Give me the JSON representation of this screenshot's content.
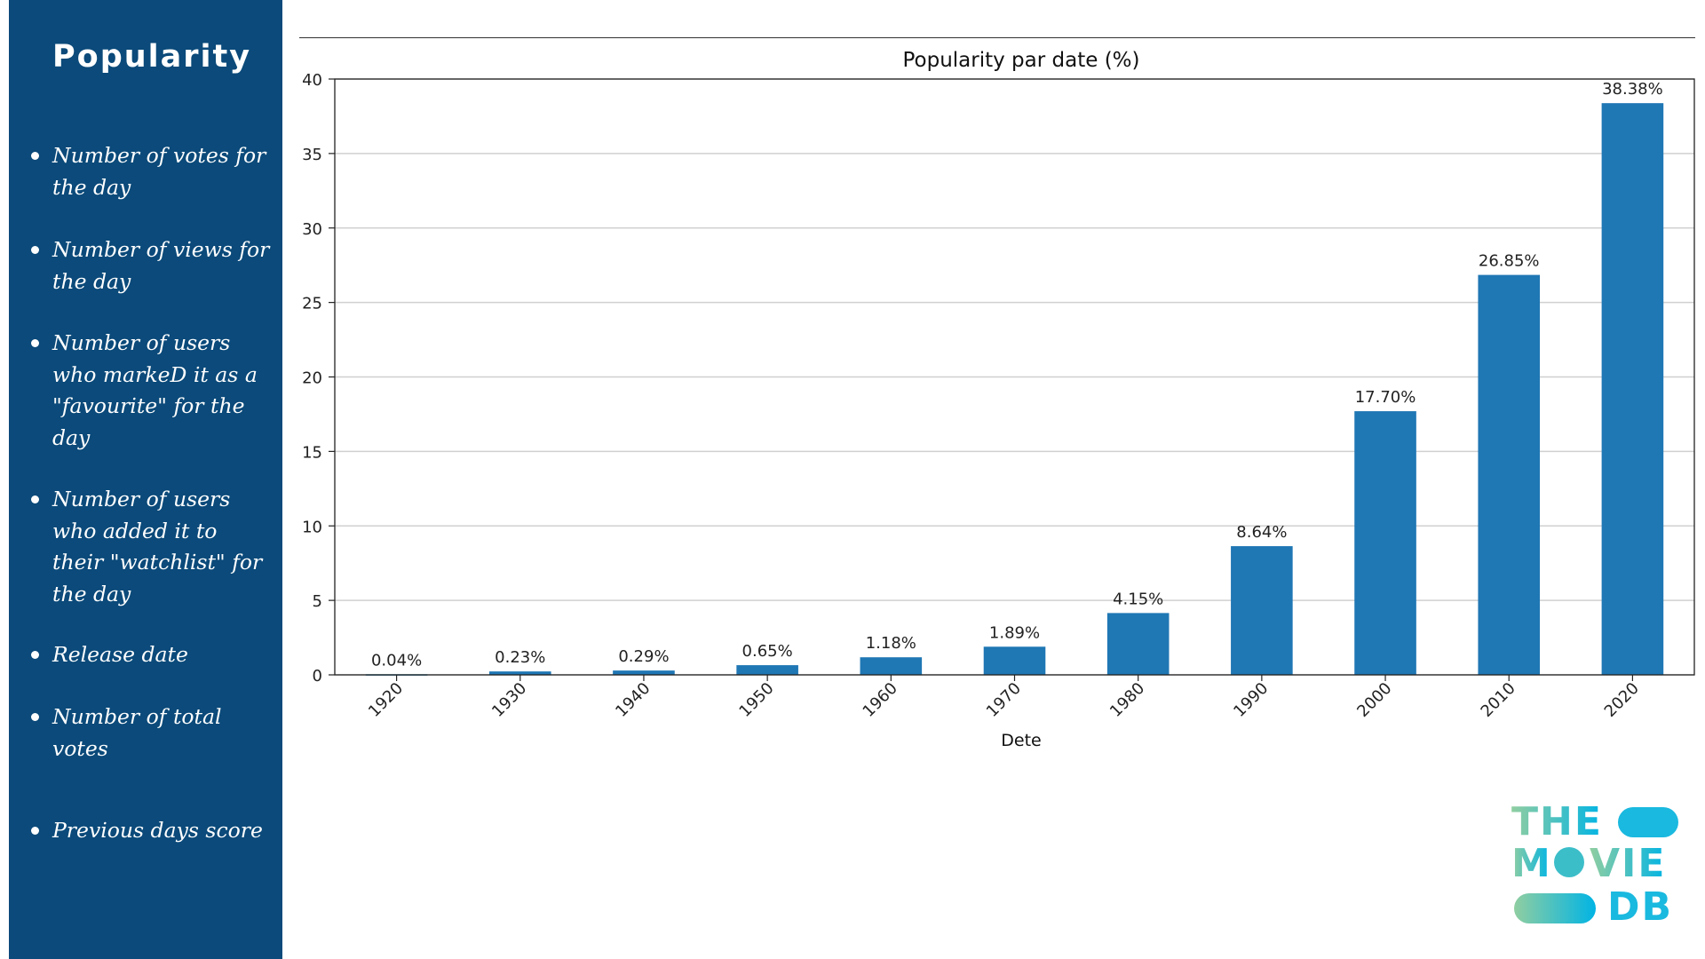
{
  "sidebar": {
    "title": "Popularity",
    "items": [
      "Number of votes for the day",
      "Number of views for the day",
      "Number of users who markeD it as a \"favourite\" for the day",
      "Number of users who added it to their \"watchlist\" for the day",
      "Release date",
      "Number of total votes",
      "Previous days score"
    ],
    "background": "#0b4a7a"
  },
  "chart_data": {
    "type": "bar",
    "title": "Popularity par date (%)",
    "xlabel": "Dete",
    "ylabel": "",
    "categories": [
      "1920",
      "1930",
      "1940",
      "1950",
      "1960",
      "1970",
      "1980",
      "1990",
      "2000",
      "2010",
      "2020"
    ],
    "values": [
      0.04,
      0.23,
      0.29,
      0.65,
      1.18,
      1.89,
      4.15,
      8.64,
      17.7,
      26.85,
      38.38
    ],
    "data_labels": [
      "0.04%",
      "0.23%",
      "0.29%",
      "0.65%",
      "1.18%",
      "1.89%",
      "4.15%",
      "8.64%",
      "17.70%",
      "26.85%",
      "38.38%"
    ],
    "yticks": [
      0,
      5,
      10,
      15,
      20,
      25,
      30,
      35,
      40
    ],
    "ylim": [
      0,
      40
    ],
    "grid": "horizontal",
    "bar_color": "#1f77b4",
    "x_tick_rotation": "45 degrees"
  },
  "logo": {
    "line1": "THE",
    "line2_left": "M",
    "line2_right": "VIE",
    "line3": "DB",
    "colors": {
      "teal": "#90cea1",
      "blue": "#01b4e4",
      "mid": "#3cbec9"
    }
  }
}
